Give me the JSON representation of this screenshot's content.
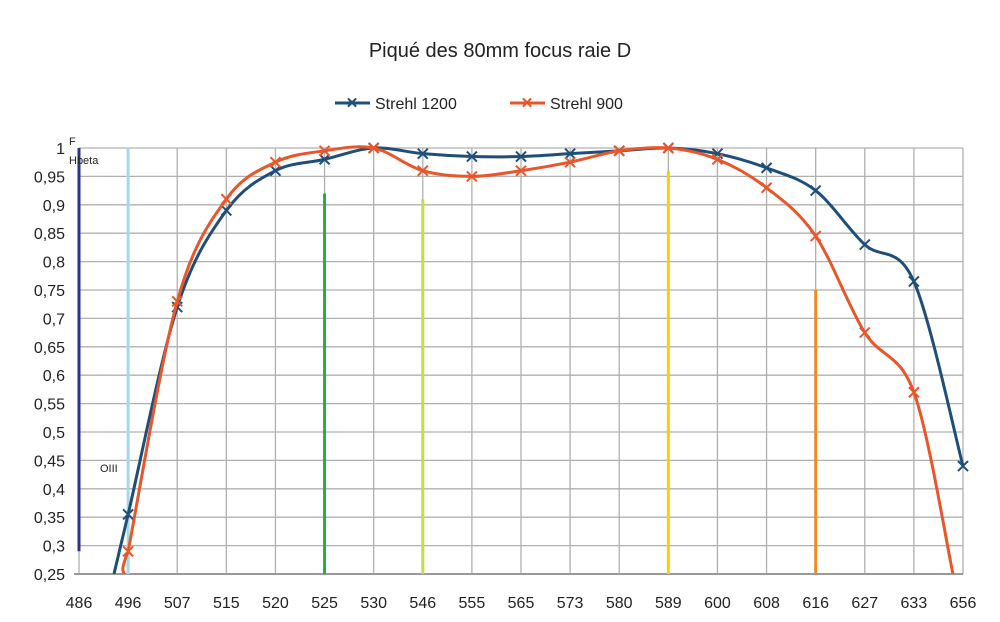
{
  "chart_data": {
    "type": "line",
    "title": "Piqué des 80mm focus raie D",
    "xlabel": "",
    "ylabel": "",
    "categories": [
      "486",
      "496",
      "507",
      "515",
      "520",
      "525",
      "530",
      "546",
      "555",
      "565",
      "573",
      "580",
      "589",
      "600",
      "608",
      "616",
      "627",
      "633",
      "656"
    ],
    "ylim": [
      0.25,
      1
    ],
    "yticks": [
      "0,25",
      "0,3",
      "0,35",
      "0,4",
      "0,45",
      "0,5",
      "0,55",
      "0,6",
      "0,65",
      "0,7",
      "0,75",
      "0,8",
      "0,85",
      "0,9",
      "0,95",
      "1"
    ],
    "grid": true,
    "legend_position": "top",
    "series": [
      {
        "name": "Strehl 1200",
        "color": "#1f4e79",
        "values": [
          null,
          0.355,
          0.72,
          0.89,
          0.96,
          0.98,
          1.0,
          0.99,
          0.985,
          0.985,
          0.99,
          0.995,
          1.0,
          0.99,
          0.965,
          0.925,
          0.83,
          0.765,
          0.44
        ]
      },
      {
        "name": "Strehl 900",
        "color": "#e8562a",
        "values": [
          null,
          0.29,
          0.73,
          0.91,
          0.975,
          0.995,
          1.0,
          0.96,
          0.95,
          0.96,
          0.975,
          0.995,
          1.0,
          0.98,
          0.93,
          0.845,
          0.675,
          0.57,
          null
        ]
      }
    ],
    "reference_lines": [
      {
        "x": "486",
        "top": 1.0,
        "bottom": 0.29,
        "color": "#2e3192"
      },
      {
        "x": "496",
        "top": 1.0,
        "bottom": 0.25,
        "color": "#a6d8e8"
      },
      {
        "x": "525",
        "top": 0.92,
        "bottom": 0.25,
        "color": "#2ea84a"
      },
      {
        "x": "546",
        "top": 0.91,
        "bottom": 0.25,
        "color": "#c3e03c"
      },
      {
        "x": "589",
        "top": 0.96,
        "bottom": 0.25,
        "color": "#f4d10c"
      },
      {
        "x": "616",
        "top": 0.75,
        "bottom": 0.25,
        "color": "#f08a24"
      }
    ],
    "annotations": [
      "F",
      "Hbeta",
      "OIII"
    ]
  }
}
